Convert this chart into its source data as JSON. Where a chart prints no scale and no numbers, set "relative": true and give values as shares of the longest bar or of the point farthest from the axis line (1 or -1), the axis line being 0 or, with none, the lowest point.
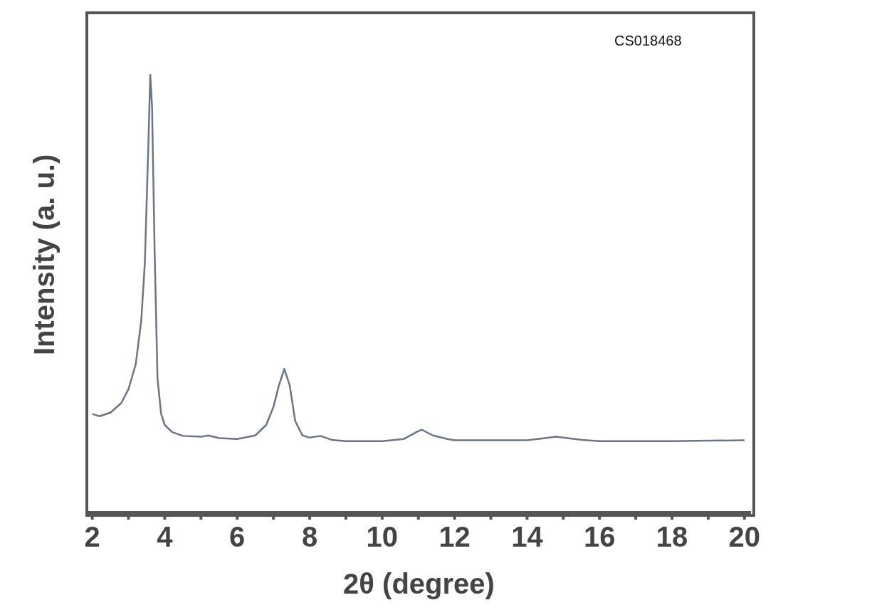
{
  "chart_data": {
    "type": "line",
    "xlabel": "2θ (degree)",
    "ylabel": "Intensity (a. u.)",
    "annotations": [
      "CS018468"
    ],
    "relative": true,
    "color": "#6b7587",
    "marker": "none",
    "legend": false,
    "grid": false,
    "xlim": [
      1.85,
      20.18
    ],
    "xticks": [
      2,
      {
        "value": 3,
        "label": null
      },
      4,
      {
        "value": 5,
        "label": null
      },
      6,
      {
        "value": 7,
        "label": null
      },
      8,
      {
        "value": 9,
        "label": null
      },
      10,
      {
        "value": 11,
        "label": null
      },
      12,
      {
        "value": 13,
        "label": null
      },
      14,
      {
        "value": 15,
        "label": null
      },
      16,
      {
        "value": 17,
        "label": null
      },
      18,
      {
        "value": 19,
        "label": null
      },
      20
    ],
    "x": [
      2.0,
      2.2,
      2.5,
      2.8,
      3.0,
      3.2,
      3.35,
      3.45,
      3.55,
      3.6,
      3.65,
      3.72,
      3.8,
      3.9,
      4.0,
      4.2,
      4.5,
      5.0,
      5.2,
      5.5,
      6.0,
      6.5,
      6.8,
      7.0,
      7.15,
      7.3,
      7.45,
      7.6,
      7.8,
      8.0,
      8.3,
      8.6,
      9.0,
      10.0,
      10.6,
      11.0,
      11.1,
      11.4,
      11.8,
      12.0,
      14.0,
      14.8,
      15.5,
      16.0,
      18.0,
      20.0
    ],
    "values": [
      0.225,
      0.22,
      0.228,
      0.25,
      0.282,
      0.339,
      0.437,
      0.568,
      0.845,
      1.0,
      0.927,
      0.6,
      0.307,
      0.225,
      0.2,
      0.184,
      0.175,
      0.173,
      0.176,
      0.17,
      0.168,
      0.176,
      0.2,
      0.241,
      0.29,
      0.328,
      0.29,
      0.209,
      0.176,
      0.171,
      0.175,
      0.166,
      0.163,
      0.163,
      0.168,
      0.186,
      0.189,
      0.176,
      0.168,
      0.165,
      0.165,
      0.173,
      0.166,
      0.163,
      0.163,
      0.165
    ]
  }
}
